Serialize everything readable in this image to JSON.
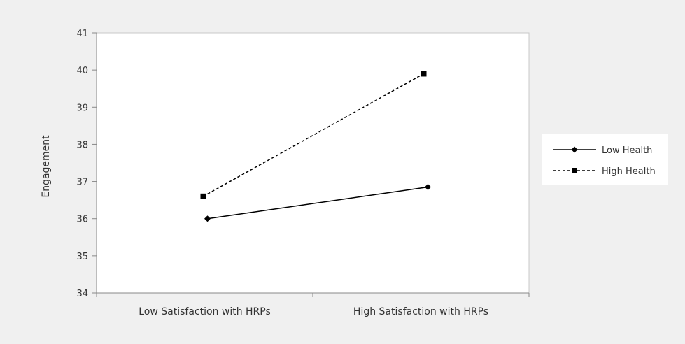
{
  "chart_data": {
    "type": "line",
    "title": "",
    "xlabel": "",
    "ylabel": "Engagement",
    "ylim": [
      34,
      41
    ],
    "y_ticks": [
      34,
      35,
      36,
      37,
      38,
      39,
      40,
      41
    ],
    "categories": [
      "Low Satisfaction with HRPs",
      "High Satisfaction with HRPs"
    ],
    "series": [
      {
        "name": "Low Health",
        "values": [
          36.0,
          36.85
        ],
        "line_style": "solid",
        "marker": "diamond"
      },
      {
        "name": "High Health",
        "values": [
          36.6,
          39.9
        ],
        "line_style": "dashed",
        "marker": "square"
      }
    ],
    "grid": false,
    "legend_position": "right"
  }
}
